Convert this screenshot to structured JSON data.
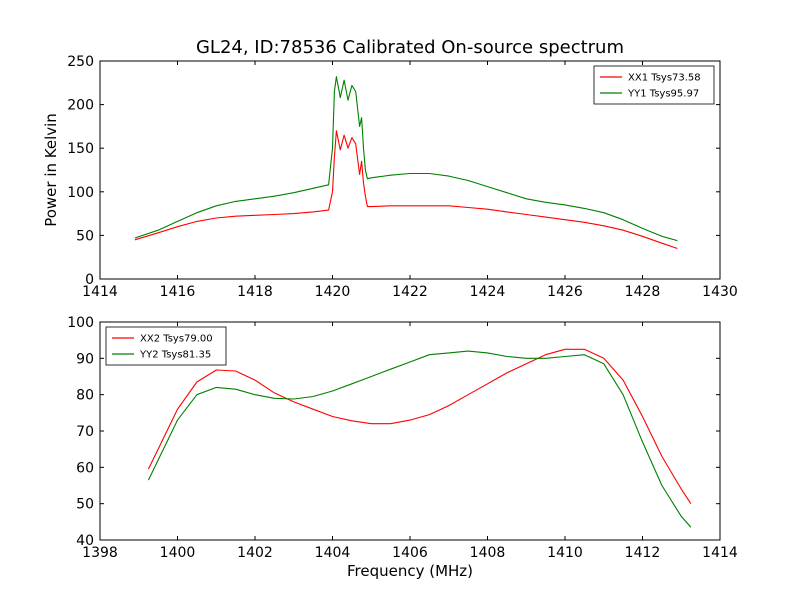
{
  "title": "GL24, ID:78536 Calibrated On-source spectrum",
  "colors": {
    "red": "#ff0000",
    "green": "#008000"
  },
  "chart_data": [
    {
      "type": "line",
      "title": "GL24, ID:78536 Calibrated On-source spectrum",
      "xlabel": "",
      "ylabel": "Power in Kelvin",
      "xlim": [
        1414,
        1430
      ],
      "ylim": [
        0,
        250
      ],
      "xticks": [
        1414,
        1416,
        1418,
        1420,
        1422,
        1424,
        1426,
        1428,
        1430
      ],
      "yticks": [
        0,
        50,
        100,
        150,
        200,
        250
      ],
      "legend_position": "top-right",
      "grid": false,
      "series": [
        {
          "name": "XX1 Tsys73.58",
          "color": "#ff0000",
          "x": [
            1414.9,
            1415.5,
            1416.0,
            1416.5,
            1417.0,
            1417.5,
            1418.0,
            1418.5,
            1419.0,
            1419.5,
            1419.9,
            1420.0,
            1420.05,
            1420.1,
            1420.2,
            1420.3,
            1420.4,
            1420.5,
            1420.6,
            1420.7,
            1420.75,
            1420.8,
            1420.85,
            1420.9,
            1421.0,
            1421.5,
            1422.0,
            1422.5,
            1423.0,
            1423.5,
            1424.0,
            1424.5,
            1425.0,
            1425.5,
            1426.0,
            1426.5,
            1427.0,
            1427.5,
            1428.0,
            1428.5,
            1428.9
          ],
          "values": [
            45,
            53,
            60,
            66,
            70,
            72,
            73,
            74,
            75,
            77,
            79,
            100,
            140,
            170,
            148,
            165,
            150,
            162,
            155,
            120,
            135,
            110,
            95,
            83,
            83,
            84,
            84,
            84,
            84,
            82,
            80,
            77,
            74,
            71,
            68,
            65,
            61,
            56,
            49,
            41,
            35
          ]
        },
        {
          "name": "YY1 Tsys95.97",
          "color": "#008000",
          "x": [
            1414.9,
            1415.5,
            1416.0,
            1416.5,
            1417.0,
            1417.5,
            1418.0,
            1418.5,
            1419.0,
            1419.5,
            1419.9,
            1420.0,
            1420.05,
            1420.1,
            1420.2,
            1420.3,
            1420.4,
            1420.5,
            1420.6,
            1420.7,
            1420.75,
            1420.8,
            1420.85,
            1420.9,
            1421.0,
            1421.5,
            1422.0,
            1422.5,
            1423.0,
            1423.5,
            1424.0,
            1424.5,
            1425.0,
            1425.5,
            1426.0,
            1426.5,
            1427.0,
            1427.5,
            1428.0,
            1428.5,
            1428.9
          ],
          "values": [
            47,
            56,
            66,
            76,
            84,
            89,
            92,
            95,
            99,
            104,
            108,
            150,
            215,
            232,
            208,
            228,
            205,
            222,
            215,
            175,
            185,
            150,
            125,
            115,
            116,
            119,
            121,
            121,
            118,
            113,
            106,
            99,
            92,
            88,
            85,
            81,
            76,
            68,
            58,
            49,
            44
          ]
        }
      ]
    },
    {
      "type": "line",
      "title": "",
      "xlabel": "Frequency (MHz)",
      "ylabel": "",
      "xlim": [
        1398,
        1414
      ],
      "ylim": [
        40,
        100
      ],
      "xticks": [
        1398,
        1400,
        1402,
        1404,
        1406,
        1408,
        1410,
        1412,
        1414
      ],
      "yticks": [
        40,
        50,
        60,
        70,
        80,
        90,
        100
      ],
      "legend_position": "top-left",
      "grid": false,
      "series": [
        {
          "name": "XX2 Tsys79.00",
          "color": "#ff0000",
          "x": [
            1399.25,
            1399.5,
            1400.0,
            1400.5,
            1401.0,
            1401.5,
            1402.0,
            1402.5,
            1403.0,
            1403.5,
            1404.0,
            1404.5,
            1405.0,
            1405.5,
            1406.0,
            1406.5,
            1407.0,
            1407.5,
            1408.0,
            1408.5,
            1409.0,
            1409.5,
            1410.0,
            1410.5,
            1411.0,
            1411.5,
            1412.0,
            1412.5,
            1413.0,
            1413.25
          ],
          "values": [
            59.5,
            65,
            76,
            83.5,
            86.8,
            86.5,
            84,
            80.5,
            78,
            76,
            74,
            72.8,
            72,
            72,
            73,
            74.5,
            77,
            80,
            83,
            86,
            88.5,
            91,
            92.5,
            92.5,
            90,
            84,
            74,
            63,
            54,
            50
          ]
        },
        {
          "name": "YY2 Tsys81.35",
          "color": "#008000",
          "x": [
            1399.25,
            1399.5,
            1400.0,
            1400.5,
            1401.0,
            1401.5,
            1402.0,
            1402.5,
            1403.0,
            1403.5,
            1404.0,
            1404.5,
            1405.0,
            1405.5,
            1406.0,
            1406.5,
            1407.0,
            1407.5,
            1408.0,
            1408.5,
            1409.0,
            1409.5,
            1410.0,
            1410.5,
            1411.0,
            1411.5,
            1412.0,
            1412.5,
            1413.0,
            1413.25
          ],
          "values": [
            56.5,
            62,
            73,
            80,
            82,
            81.5,
            80,
            79,
            78.8,
            79.5,
            81,
            83,
            85,
            87,
            89,
            91,
            91.5,
            92,
            91.5,
            90.5,
            90,
            90,
            90.5,
            91,
            88.5,
            80,
            67,
            55,
            46.5,
            43.5
          ]
        }
      ]
    }
  ]
}
